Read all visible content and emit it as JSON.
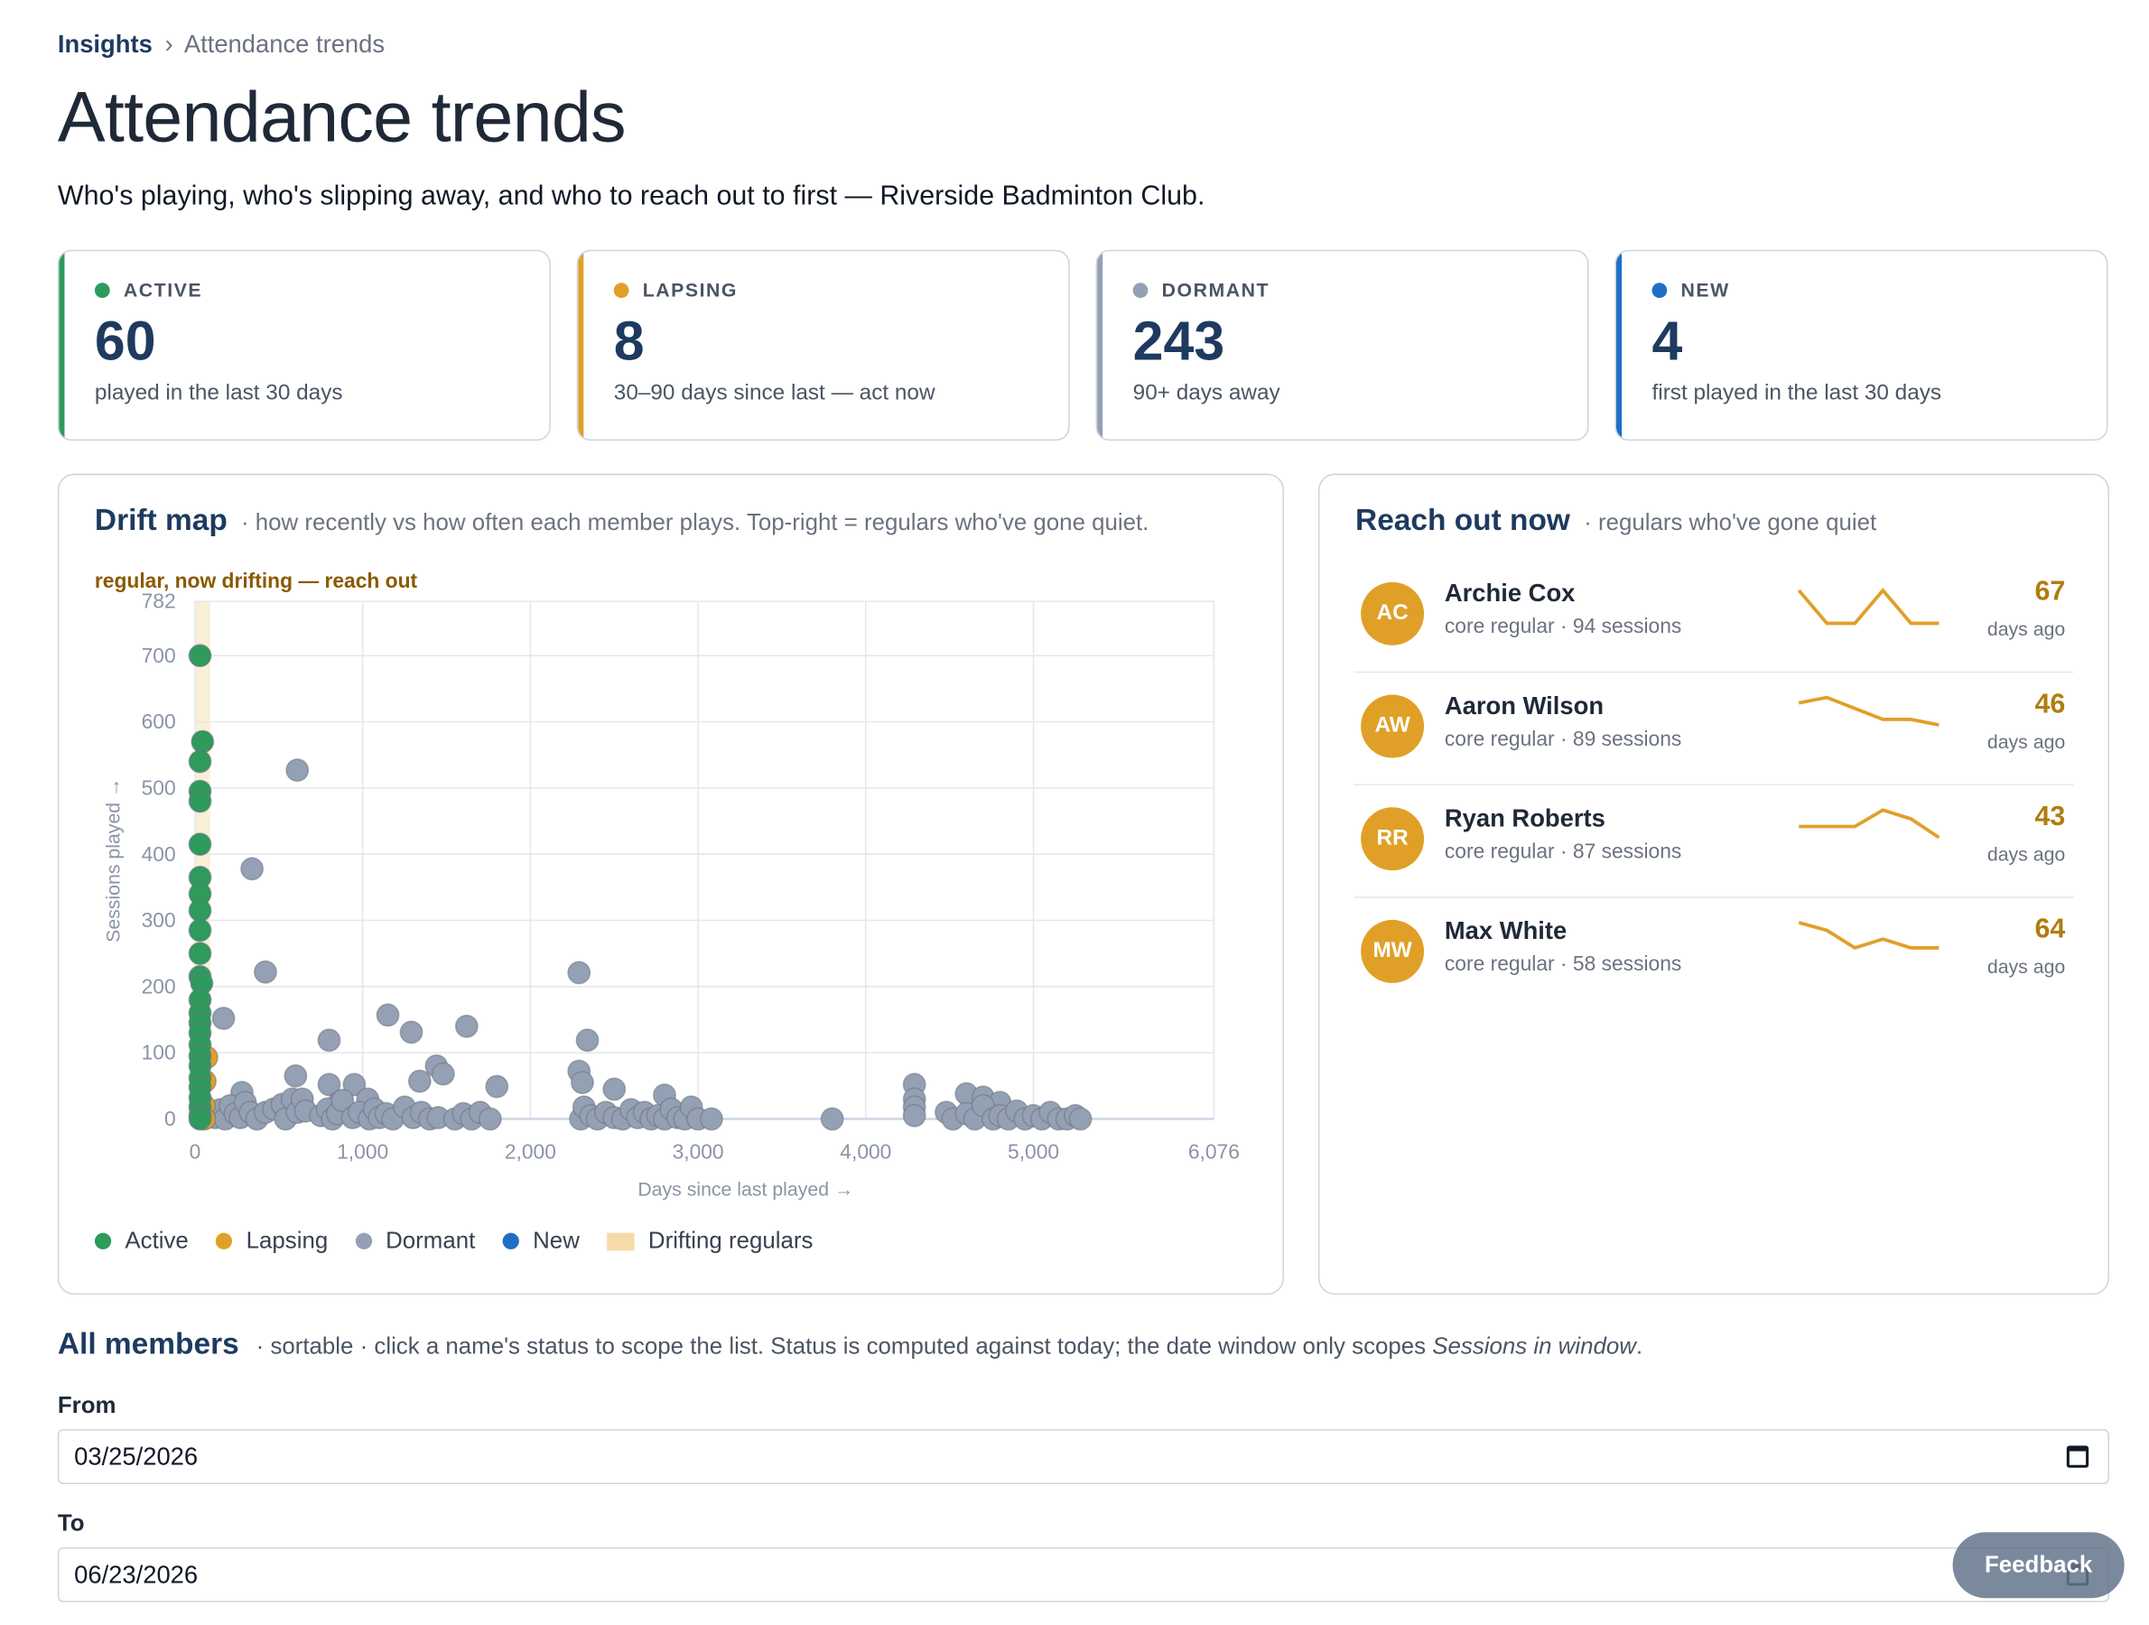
{
  "breadcrumb": {
    "root": "Insights",
    "separator": "›",
    "current": "Attendance trends"
  },
  "page": {
    "title": "Attendance trends",
    "subtitle": "Who's playing, who's slipping away, and who to reach out to first — Riverside Badminton Club."
  },
  "kpis": [
    {
      "label": "ACTIVE",
      "value": "60",
      "desc": "played in the last 30 days",
      "color": "#2e9a5c"
    },
    {
      "label": "LAPSING",
      "value": "8",
      "desc": "30–90 days since last — act now",
      "color": "#e0a028"
    },
    {
      "label": "DORMANT",
      "value": "243",
      "desc": "90+ days away",
      "color": "#94a0b4"
    },
    {
      "label": "NEW",
      "value": "4",
      "desc": "first played in the last 30 days",
      "color": "#1f6fc5"
    }
  ],
  "drift_map": {
    "title": "Drift map",
    "note": "· how recently vs how often each member plays. Top-right = regulars who've gone quiet.",
    "band_label": "regular, now drifting — reach out"
  },
  "legend": {
    "active": "Active",
    "lapsing": "Lapsing",
    "dormant": "Dormant",
    "new": "New",
    "drifting": "Drifting regulars"
  },
  "chart_data": {
    "type": "scatter",
    "title": "Drift map",
    "xlabel": "Days since last played →",
    "ylabel": "Sessions played →",
    "xlim": [
      0,
      6076
    ],
    "ylim": [
      0,
      782
    ],
    "x_ticks": [
      0,
      1000,
      2000,
      3000,
      4000,
      5000,
      6076
    ],
    "x_tick_labels": [
      "0",
      "1,000",
      "2,000",
      "3,000",
      "4,000",
      "5,000",
      "6,076"
    ],
    "y_ticks": [
      0,
      100,
      200,
      300,
      400,
      500,
      600,
      700,
      782
    ],
    "y_tick_labels": [
      "0",
      "100",
      "200",
      "300",
      "400",
      "500",
      "600",
      "700",
      "782"
    ],
    "grid": true,
    "highlight_band": {
      "label": "Drifting regulars",
      "x": [
        0,
        90
      ]
    },
    "colors": {
      "Active": "#2e9a5c",
      "Lapsing": "#e0a028",
      "Dormant": "#94a0b4",
      "New": "#1f6fc5",
      "band": "#f5dba8"
    },
    "series": [
      {
        "name": "Active",
        "points": [
          [
            30,
            700
          ],
          [
            45,
            570
          ],
          [
            30,
            540
          ],
          [
            30,
            495
          ],
          [
            30,
            480
          ],
          [
            30,
            415
          ],
          [
            30,
            365
          ],
          [
            30,
            340
          ],
          [
            30,
            315
          ],
          [
            30,
            285
          ],
          [
            30,
            250
          ],
          [
            30,
            215
          ],
          [
            40,
            205
          ],
          [
            30,
            180
          ],
          [
            30,
            160
          ],
          [
            30,
            145
          ],
          [
            30,
            130
          ],
          [
            30,
            112
          ],
          [
            30,
            95
          ],
          [
            30,
            80
          ],
          [
            30,
            62
          ],
          [
            30,
            48
          ],
          [
            30,
            32
          ],
          [
            30,
            18
          ],
          [
            30,
            5
          ],
          [
            30,
            0
          ]
        ]
      },
      {
        "name": "Lapsing",
        "points": [
          [
            70,
            93
          ],
          [
            60,
            57
          ],
          [
            55,
            20
          ],
          [
            55,
            0
          ]
        ]
      },
      {
        "name": "Dormant",
        "points": [
          [
            610,
            527
          ],
          [
            340,
            378
          ],
          [
            420,
            222
          ],
          [
            170,
            152
          ],
          [
            800,
            119
          ],
          [
            1150,
            157
          ],
          [
            1290,
            131
          ],
          [
            1620,
            140
          ],
          [
            2290,
            221
          ],
          [
            2340,
            119
          ],
          [
            1440,
            80
          ],
          [
            1480,
            68
          ],
          [
            1340,
            57
          ],
          [
            1800,
            49
          ],
          [
            2290,
            72
          ],
          [
            2310,
            55
          ],
          [
            2500,
            45
          ],
          [
            2800,
            36
          ],
          [
            4290,
            52
          ],
          [
            4600,
            38
          ],
          [
            4700,
            33
          ],
          [
            4800,
            25
          ],
          [
            280,
            40
          ],
          [
            600,
            65
          ],
          [
            800,
            52
          ],
          [
            950,
            52
          ],
          [
            1030,
            30
          ],
          [
            860,
            25
          ],
          [
            120,
            2
          ],
          [
            150,
            14
          ],
          [
            180,
            0
          ],
          [
            210,
            20
          ],
          [
            240,
            8
          ],
          [
            270,
            2
          ],
          [
            300,
            25
          ],
          [
            330,
            10
          ],
          [
            370,
            0
          ],
          [
            420,
            10
          ],
          [
            470,
            15
          ],
          [
            520,
            22
          ],
          [
            540,
            0
          ],
          [
            580,
            30
          ],
          [
            610,
            10
          ],
          [
            640,
            30
          ],
          [
            660,
            12
          ],
          [
            750,
            5
          ],
          [
            790,
            15
          ],
          [
            820,
            0
          ],
          [
            850,
            8
          ],
          [
            880,
            28
          ],
          [
            940,
            2
          ],
          [
            980,
            10
          ],
          [
            1040,
            0
          ],
          [
            1070,
            15
          ],
          [
            1100,
            2
          ],
          [
            1140,
            8
          ],
          [
            1180,
            0
          ],
          [
            1250,
            18
          ],
          [
            1300,
            2
          ],
          [
            1350,
            10
          ],
          [
            1400,
            0
          ],
          [
            1450,
            2
          ],
          [
            1550,
            0
          ],
          [
            1600,
            8
          ],
          [
            1650,
            0
          ],
          [
            1700,
            10
          ],
          [
            1760,
            0
          ],
          [
            2300,
            0
          ],
          [
            2320,
            18
          ],
          [
            2360,
            5
          ],
          [
            2400,
            0
          ],
          [
            2450,
            10
          ],
          [
            2500,
            2
          ],
          [
            2550,
            0
          ],
          [
            2600,
            14
          ],
          [
            2640,
            2
          ],
          [
            2680,
            10
          ],
          [
            2720,
            0
          ],
          [
            2760,
            5
          ],
          [
            2800,
            0
          ],
          [
            2840,
            15
          ],
          [
            2880,
            2
          ],
          [
            2920,
            0
          ],
          [
            2960,
            18
          ],
          [
            3000,
            0
          ],
          [
            3080,
            0
          ],
          [
            3800,
            0
          ],
          [
            4290,
            30
          ],
          [
            4290,
            18
          ],
          [
            4290,
            5
          ],
          [
            4480,
            10
          ],
          [
            4520,
            0
          ],
          [
            4600,
            8
          ],
          [
            4650,
            0
          ],
          [
            4700,
            20
          ],
          [
            4760,
            0
          ],
          [
            4800,
            5
          ],
          [
            4850,
            0
          ],
          [
            4900,
            12
          ],
          [
            4950,
            0
          ],
          [
            5000,
            5
          ],
          [
            5050,
            0
          ],
          [
            5100,
            10
          ],
          [
            5150,
            0
          ],
          [
            5200,
            0
          ],
          [
            5250,
            5
          ],
          [
            5280,
            0
          ]
        ]
      },
      {
        "name": "New",
        "points": []
      }
    ]
  },
  "reach_out": {
    "title": "Reach out now",
    "note": "· regulars who've gone quiet",
    "days_label": "days ago",
    "people": [
      {
        "initials": "AC",
        "name": "Archie Cox",
        "meta": "core regular · 94 sessions",
        "days": "67",
        "spark": [
          4,
          1,
          1,
          4,
          1,
          1
        ]
      },
      {
        "initials": "AW",
        "name": "Aaron Wilson",
        "meta": "core regular · 89 sessions",
        "days": "46",
        "spark": [
          4,
          4.5,
          3.5,
          2.5,
          2.5,
          2
        ]
      },
      {
        "initials": "RR",
        "name": "Ryan Roberts",
        "meta": "core regular · 87 sessions",
        "days": "43",
        "spark": [
          3,
          3,
          3,
          4.5,
          3.7,
          2
        ]
      },
      {
        "initials": "MW",
        "name": "Max White",
        "meta": "core regular · 58 sessions",
        "days": "64",
        "spark": [
          4.5,
          3.8,
          2.2,
          3,
          2.2,
          2.2
        ]
      }
    ]
  },
  "members": {
    "title": "All members",
    "note_prefix": "· sortable · click a name's status to scope the list. Status is computed against today; the date window only scopes",
    "note_em": "Sessions in window",
    "note_suffix": "."
  },
  "filters": {
    "from_label": "From",
    "from_value": "03/25/2026",
    "to_label": "To",
    "to_value": "06/23/2026"
  },
  "feedback": {
    "label": "Feedback"
  }
}
